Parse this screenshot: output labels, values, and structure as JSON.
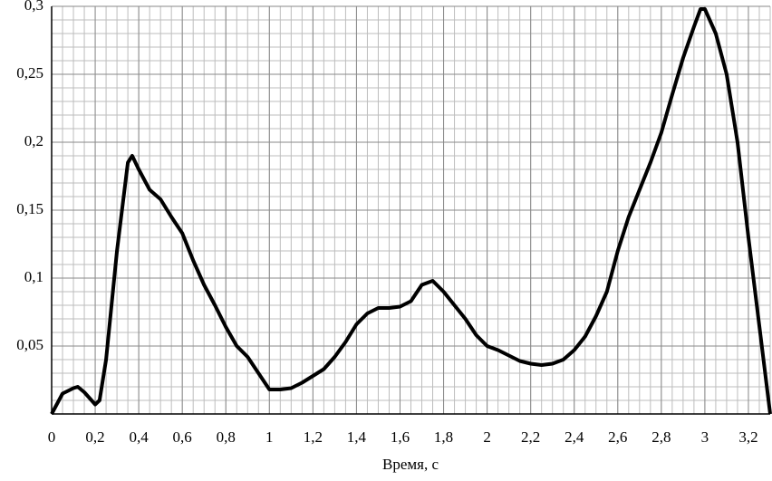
{
  "chart_data": {
    "type": "line",
    "x_label": "Время, с",
    "x": [
      0,
      0.05,
      0.1,
      0.12,
      0.15,
      0.2,
      0.22,
      0.25,
      0.3,
      0.35,
      0.37,
      0.4,
      0.45,
      0.5,
      0.55,
      0.6,
      0.65,
      0.7,
      0.75,
      0.8,
      0.85,
      0.9,
      0.95,
      1.0,
      1.05,
      1.1,
      1.15,
      1.2,
      1.25,
      1.3,
      1.35,
      1.4,
      1.45,
      1.5,
      1.55,
      1.6,
      1.65,
      1.7,
      1.75,
      1.8,
      1.85,
      1.9,
      1.95,
      2.0,
      2.05,
      2.1,
      2.15,
      2.2,
      2.25,
      2.3,
      2.35,
      2.4,
      2.45,
      2.5,
      2.55,
      2.6,
      2.65,
      2.7,
      2.75,
      2.8,
      2.85,
      2.9,
      2.95,
      2.98,
      3.0,
      3.05,
      3.1,
      3.15,
      3.2,
      3.25,
      3.3
    ],
    "series": [
      {
        "color": "#000000",
        "values": [
          0,
          0.015,
          0.019,
          0.02,
          0.016,
          0.007,
          0.01,
          0.04,
          0.12,
          0.185,
          0.19,
          0.18,
          0.165,
          0.158,
          0.145,
          0.133,
          0.113,
          0.095,
          0.08,
          0.064,
          0.05,
          0.042,
          0.03,
          0.018,
          0.018,
          0.019,
          0.023,
          0.028,
          0.033,
          0.042,
          0.053,
          0.066,
          0.074,
          0.078,
          0.078,
          0.079,
          0.083,
          0.095,
          0.098,
          0.09,
          0.08,
          0.07,
          0.058,
          0.05,
          0.047,
          0.043,
          0.039,
          0.037,
          0.036,
          0.037,
          0.04,
          0.047,
          0.057,
          0.072,
          0.09,
          0.12,
          0.145,
          0.165,
          0.185,
          0.207,
          0.235,
          0.262,
          0.285,
          0.298,
          0.298,
          0.28,
          0.25,
          0.2,
          0.13,
          0.065,
          0
        ]
      }
    ],
    "xlim": [
      0,
      3.3
    ],
    "ylim": [
      0,
      0.3
    ],
    "xticks": [
      0,
      {
        "value": 0.2,
        "label": "0,2"
      },
      {
        "value": 0.4,
        "label": "0,4"
      },
      {
        "value": 0.6,
        "label": "0,6"
      },
      {
        "value": 0.8,
        "label": "0,8"
      },
      1,
      {
        "value": 1.2,
        "label": "1,2"
      },
      {
        "value": 1.4,
        "label": "1,4"
      },
      {
        "value": 1.6,
        "label": "1,6"
      },
      {
        "value": 1.8,
        "label": "1,8"
      },
      2,
      {
        "value": 2.2,
        "label": "2,2"
      },
      {
        "value": 2.4,
        "label": "2,4"
      },
      {
        "value": 2.6,
        "label": "2,6"
      },
      {
        "value": 2.8,
        "label": "2,8"
      },
      3,
      {
        "value": 3.2,
        "label": "3,2"
      }
    ],
    "yticks": [
      {
        "value": 0.05,
        "label": "0,05"
      },
      {
        "value": 0.1,
        "label": "0,1"
      },
      {
        "value": 0.15,
        "label": "0,15"
      },
      {
        "value": 0.2,
        "label": "0,2"
      },
      {
        "value": 0.25,
        "label": "0,25"
      },
      {
        "value": 0.3,
        "label": "0,3"
      }
    ],
    "grid": true
  }
}
